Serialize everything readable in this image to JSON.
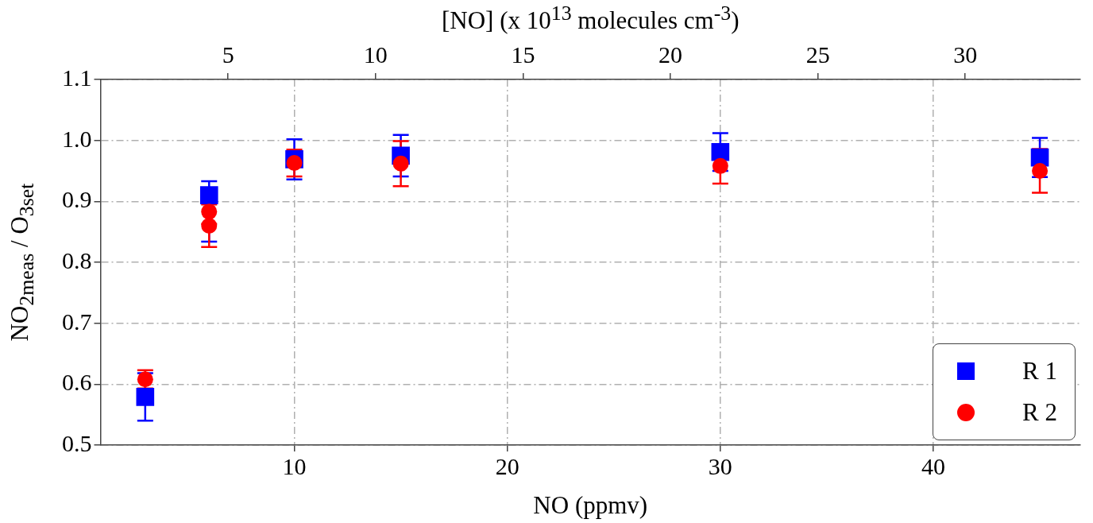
{
  "chart_data": {
    "type": "scatter",
    "xlabel": "NO (ppmv)",
    "ylabel": "NO$_{2meas}$ / O$_{3set}$",
    "x2label": "[NO] (x 10$^{13}$ molecules cm$^{-3}$)",
    "xlim": [
      0.9,
      46.9
    ],
    "xticks": [
      10,
      20,
      30,
      40
    ],
    "x2lim": [
      0.67,
      33.9
    ],
    "x2ticks": [
      5,
      10,
      15,
      20,
      25,
      30
    ],
    "ylim": [
      0.5,
      1.1
    ],
    "yticks": [
      0.5,
      0.6,
      0.7,
      0.8,
      0.9,
      {
        "value": 1,
        "label": "1.0"
      },
      1.1
    ],
    "grid": true,
    "legend": "bottom right",
    "series": [
      {
        "name": "R 1",
        "color": "#0000ff",
        "marker": "square",
        "x": [
          3,
          6,
          10,
          15,
          30,
          45
        ],
        "values": [
          0.579,
          0.91,
          0.969,
          0.975,
          0.981,
          0.972
        ],
        "errors": [
          0.039,
          [
            0.834,
            0.933
          ],
          0.033,
          0.034,
          0.031,
          0.032
        ]
      },
      {
        "name": "R 2",
        "color": "#ff0000",
        "marker": "circle",
        "x": [
          3,
          6,
          6,
          10,
          15,
          30,
          45
        ],
        "values": [
          0.608,
          0.883,
          0.86,
          0.963,
          0.962,
          0.958,
          0.95
        ],
        "errors": [
          0.015,
          0.02,
          0.035,
          0.022,
          0.037,
          0.029,
          0.036
        ]
      }
    ]
  }
}
